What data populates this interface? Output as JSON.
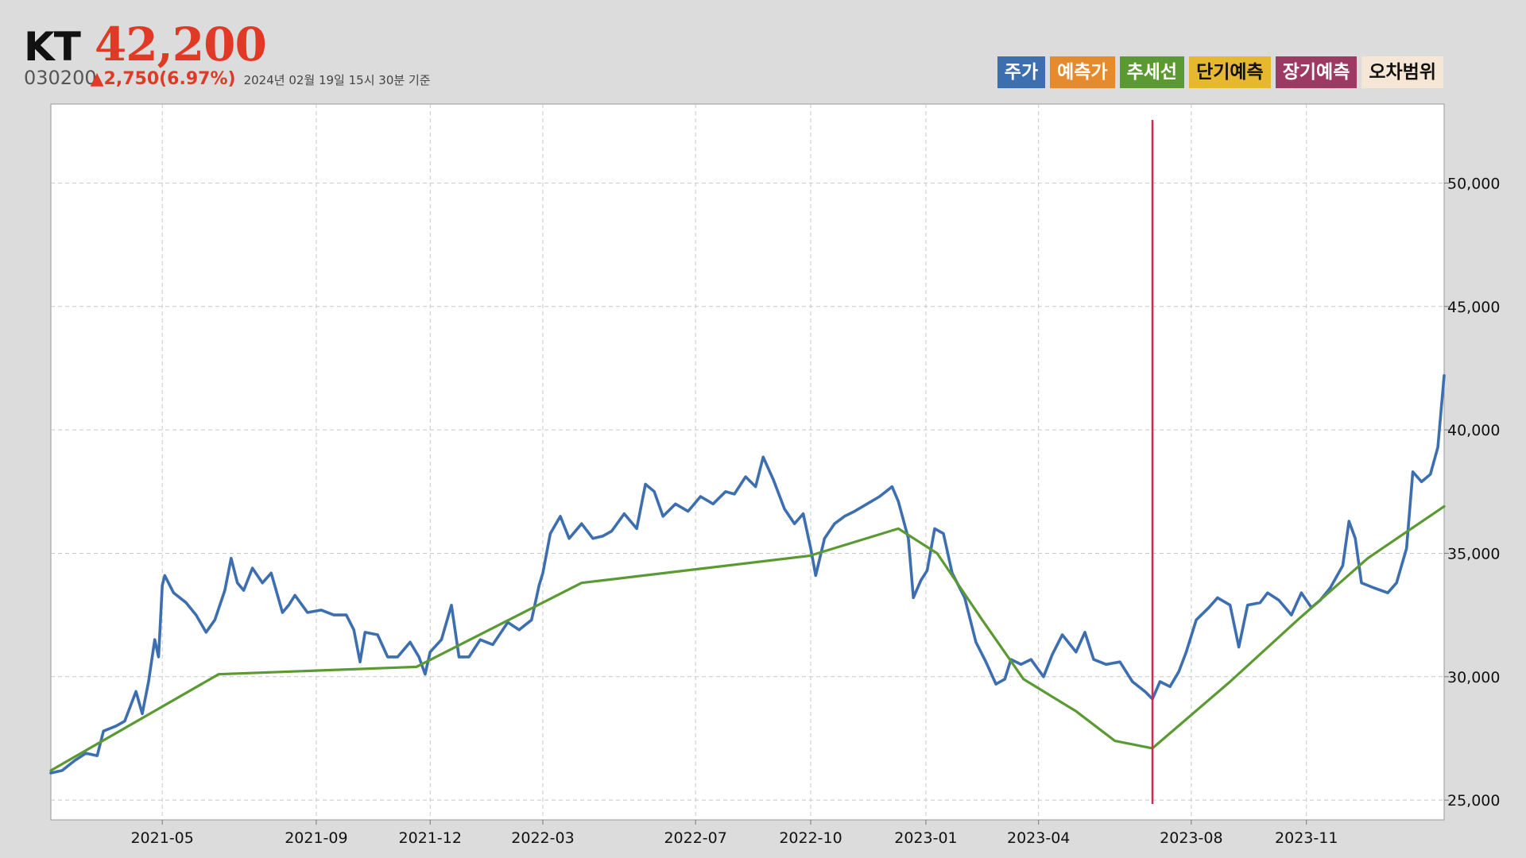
{
  "header": {
    "name": "KT",
    "price": "42,200",
    "code": "030200",
    "change": "▲2,750(6.97%)",
    "as_of": "2024년 02월 19일 15시 30분 기준"
  },
  "legend": [
    {
      "label": "주가",
      "bg": "#3d6fb0",
      "fg": "#ffffff"
    },
    {
      "label": "예측가",
      "bg": "#e68a2e",
      "fg": "#ffffff"
    },
    {
      "label": "추세선",
      "bg": "#5b9a32",
      "fg": "#ffffff"
    },
    {
      "label": "단기예측",
      "bg": "#e6b830",
      "fg": "#111111"
    },
    {
      "label": "장기예측",
      "bg": "#9c3a64",
      "fg": "#ffffff"
    },
    {
      "label": "오차범위",
      "bg": "#f6e6d6",
      "fg": "#111111"
    }
  ],
  "chart_data": {
    "type": "line",
    "title": "",
    "xlabel": "",
    "ylabel": "",
    "x_range": [
      "2021-02-01",
      "2024-02-19"
    ],
    "ylim": [
      24200,
      53200
    ],
    "y_ticks": [
      25000,
      30000,
      35000,
      40000,
      45000,
      50000
    ],
    "y_tick_labels": [
      "25,000",
      "30,000",
      "35,000",
      "40,000",
      "45,000",
      "50,000"
    ],
    "x_ticks": [
      "2021-05-01",
      "2021-09-01",
      "2021-12-01",
      "2022-03-01",
      "2022-07-01",
      "2022-10-01",
      "2023-01-01",
      "2023-04-01",
      "2023-08-01",
      "2023-11-01"
    ],
    "x_tick_labels": [
      "2021-05",
      "2021-09",
      "2021-12",
      "2022-03",
      "2022-07",
      "2022-10",
      "2023-01",
      "2023-04",
      "2023-08",
      "2023-11"
    ],
    "grid": true,
    "y_axis_position": "right",
    "marker_line": {
      "x": "2023-07-01",
      "color": "#d62850"
    },
    "series": [
      {
        "color": "#3d6fb0",
        "points": [
          [
            "2021-02-01",
            26100
          ],
          [
            "2021-02-10",
            26200
          ],
          [
            "2021-02-20",
            26600
          ],
          [
            "2021-03-01",
            26900
          ],
          [
            "2021-03-10",
            26800
          ],
          [
            "2021-03-15",
            27800
          ],
          [
            "2021-03-25",
            28000
          ],
          [
            "2021-04-01",
            28200
          ],
          [
            "2021-04-10",
            29400
          ],
          [
            "2021-04-15",
            28500
          ],
          [
            "2021-04-20",
            29800
          ],
          [
            "2021-04-25",
            31500
          ],
          [
            "2021-04-28",
            30800
          ],
          [
            "2021-05-01",
            33700
          ],
          [
            "2021-05-03",
            34100
          ],
          [
            "2021-05-10",
            33400
          ],
          [
            "2021-05-20",
            33000
          ],
          [
            "2021-05-28",
            32500
          ],
          [
            "2021-06-05",
            31800
          ],
          [
            "2021-06-12",
            32300
          ],
          [
            "2021-06-20",
            33500
          ],
          [
            "2021-06-25",
            34800
          ],
          [
            "2021-06-30",
            33800
          ],
          [
            "2021-07-05",
            33500
          ],
          [
            "2021-07-12",
            34400
          ],
          [
            "2021-07-20",
            33800
          ],
          [
            "2021-07-27",
            34200
          ],
          [
            "2021-08-05",
            32600
          ],
          [
            "2021-08-10",
            32900
          ],
          [
            "2021-08-15",
            33300
          ],
          [
            "2021-08-25",
            32600
          ],
          [
            "2021-09-05",
            32700
          ],
          [
            "2021-09-15",
            32500
          ],
          [
            "2021-09-25",
            32500
          ],
          [
            "2021-10-01",
            31900
          ],
          [
            "2021-10-06",
            30600
          ],
          [
            "2021-10-10",
            31800
          ],
          [
            "2021-10-20",
            31700
          ],
          [
            "2021-10-28",
            30800
          ],
          [
            "2021-11-05",
            30800
          ],
          [
            "2021-11-15",
            31400
          ],
          [
            "2021-11-22",
            30800
          ],
          [
            "2021-11-27",
            30100
          ],
          [
            "2021-12-01",
            31000
          ],
          [
            "2021-12-10",
            31500
          ],
          [
            "2021-12-18",
            32900
          ],
          [
            "2021-12-24",
            30800
          ],
          [
            "2022-01-01",
            30800
          ],
          [
            "2022-01-10",
            31500
          ],
          [
            "2022-01-20",
            31300
          ],
          [
            "2022-02-01",
            32200
          ],
          [
            "2022-02-10",
            31900
          ],
          [
            "2022-02-20",
            32300
          ],
          [
            "2022-02-26",
            33700
          ],
          [
            "2022-03-01",
            34200
          ],
          [
            "2022-03-07",
            35800
          ],
          [
            "2022-03-15",
            36500
          ],
          [
            "2022-03-22",
            35600
          ],
          [
            "2022-04-01",
            36200
          ],
          [
            "2022-04-10",
            35600
          ],
          [
            "2022-04-18",
            35700
          ],
          [
            "2022-04-25",
            35900
          ],
          [
            "2022-05-05",
            36600
          ],
          [
            "2022-05-15",
            36000
          ],
          [
            "2022-05-22",
            37800
          ],
          [
            "2022-05-29",
            37500
          ],
          [
            "2022-06-05",
            36500
          ],
          [
            "2022-06-15",
            37000
          ],
          [
            "2022-06-25",
            36700
          ],
          [
            "2022-07-05",
            37300
          ],
          [
            "2022-07-15",
            37000
          ],
          [
            "2022-07-25",
            37500
          ],
          [
            "2022-08-01",
            37400
          ],
          [
            "2022-08-10",
            38100
          ],
          [
            "2022-08-18",
            37700
          ],
          [
            "2022-08-24",
            38900
          ],
          [
            "2022-09-01",
            38000
          ],
          [
            "2022-09-10",
            36800
          ],
          [
            "2022-09-18",
            36200
          ],
          [
            "2022-09-25",
            36600
          ],
          [
            "2022-10-01",
            35200
          ],
          [
            "2022-10-05",
            34100
          ],
          [
            "2022-10-12",
            35600
          ],
          [
            "2022-10-20",
            36200
          ],
          [
            "2022-10-28",
            36500
          ],
          [
            "2022-11-05",
            36700
          ],
          [
            "2022-11-15",
            37000
          ],
          [
            "2022-11-25",
            37300
          ],
          [
            "2022-12-05",
            37700
          ],
          [
            "2022-12-10",
            37100
          ],
          [
            "2022-12-18",
            35600
          ],
          [
            "2022-12-22",
            33200
          ],
          [
            "2022-12-28",
            33900
          ],
          [
            "2023-01-02",
            34300
          ],
          [
            "2023-01-08",
            36000
          ],
          [
            "2023-01-15",
            35800
          ],
          [
            "2023-01-22",
            34200
          ],
          [
            "2023-02-01",
            33200
          ],
          [
            "2023-02-10",
            31400
          ],
          [
            "2023-02-18",
            30600
          ],
          [
            "2023-02-26",
            29700
          ],
          [
            "2023-03-05",
            29900
          ],
          [
            "2023-03-10",
            30700
          ],
          [
            "2023-03-18",
            30500
          ],
          [
            "2023-03-26",
            30700
          ],
          [
            "2023-04-05",
            30000
          ],
          [
            "2023-04-12",
            30900
          ],
          [
            "2023-04-20",
            31700
          ],
          [
            "2023-05-01",
            31000
          ],
          [
            "2023-05-08",
            31800
          ],
          [
            "2023-05-15",
            30700
          ],
          [
            "2023-05-25",
            30500
          ],
          [
            "2023-06-05",
            30600
          ],
          [
            "2023-06-15",
            29800
          ],
          [
            "2023-06-25",
            29400
          ],
          [
            "2023-07-01",
            29100
          ],
          [
            "2023-07-07",
            29800
          ],
          [
            "2023-07-15",
            29600
          ],
          [
            "2023-07-22",
            30200
          ],
          [
            "2023-07-28",
            31000
          ],
          [
            "2023-08-05",
            32300
          ],
          [
            "2023-08-15",
            32800
          ],
          [
            "2023-08-22",
            33200
          ],
          [
            "2023-09-01",
            32900
          ],
          [
            "2023-09-08",
            31200
          ],
          [
            "2023-09-15",
            32900
          ],
          [
            "2023-09-25",
            33000
          ],
          [
            "2023-10-01",
            33400
          ],
          [
            "2023-10-10",
            33100
          ],
          [
            "2023-10-20",
            32500
          ],
          [
            "2023-10-28",
            33400
          ],
          [
            "2023-11-05",
            32800
          ],
          [
            "2023-11-12",
            33100
          ],
          [
            "2023-11-20",
            33600
          ],
          [
            "2023-11-30",
            34500
          ],
          [
            "2023-12-05",
            36300
          ],
          [
            "2023-12-10",
            35600
          ],
          [
            "2023-12-15",
            33800
          ],
          [
            "2023-12-25",
            33600
          ],
          [
            "2024-01-05",
            33400
          ],
          [
            "2024-01-12",
            33800
          ],
          [
            "2024-01-20",
            35200
          ],
          [
            "2024-01-25",
            38300
          ],
          [
            "2024-02-01",
            37900
          ],
          [
            "2024-02-08",
            38200
          ],
          [
            "2024-02-14",
            39300
          ],
          [
            "2024-02-19",
            42200
          ]
        ]
      },
      {
        "color": "#5b9a32",
        "points": [
          [
            "2021-02-01",
            26200
          ],
          [
            "2021-06-15",
            30100
          ],
          [
            "2021-11-20",
            30400
          ],
          [
            "2022-04-01",
            33800
          ],
          [
            "2022-09-30",
            34900
          ],
          [
            "2022-12-10",
            36000
          ],
          [
            "2023-01-10",
            35000
          ],
          [
            "2023-02-15",
            32300
          ],
          [
            "2023-03-20",
            29900
          ],
          [
            "2023-05-01",
            28600
          ],
          [
            "2023-06-01",
            27400
          ],
          [
            "2023-07-01",
            27100
          ],
          [
            "2023-09-01",
            29800
          ],
          [
            "2023-10-25",
            32300
          ],
          [
            "2023-12-20",
            34800
          ],
          [
            "2024-02-19",
            36900
          ]
        ]
      }
    ]
  }
}
